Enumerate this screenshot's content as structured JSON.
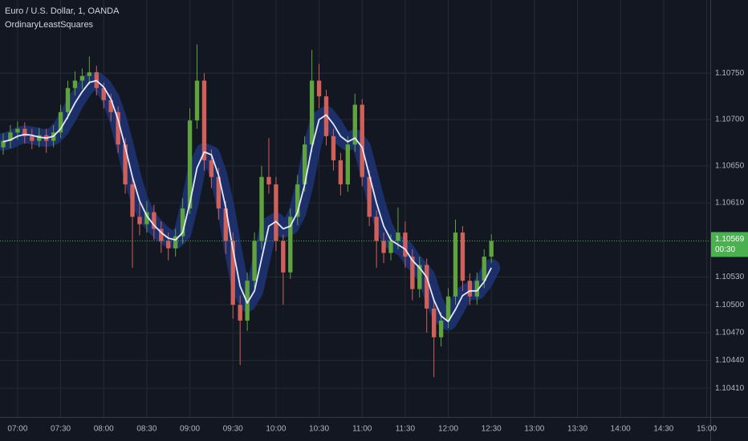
{
  "chart_data": {
    "type": "candlestick",
    "title": "Euro / U.S. Dollar, 1, OANDA",
    "x": [
      0,
      1,
      2,
      3,
      4,
      5,
      6,
      7,
      8,
      9,
      10,
      11,
      12,
      13,
      14,
      15,
      16,
      17,
      18,
      19,
      20,
      21,
      22,
      23,
      24,
      25,
      26,
      27,
      28,
      29,
      30,
      31,
      32,
      33,
      34,
      35,
      36,
      37,
      38,
      39,
      40,
      41,
      42,
      43,
      44,
      45,
      46,
      47,
      48,
      49,
      50,
      51,
      52,
      53,
      54,
      55,
      56,
      57,
      58,
      59,
      60,
      61,
      62,
      63,
      64,
      65,
      66,
      67,
      68
    ],
    "open": [
      1.1067,
      1.10677,
      1.10686,
      1.1069,
      1.10682,
      1.10677,
      1.10683,
      1.10677,
      1.10686,
      1.10708,
      1.10734,
      1.10742,
      1.10747,
      1.10751,
      1.10734,
      1.10721,
      1.10708,
      1.10673,
      1.1063,
      1.10595,
      1.10587,
      1.106,
      1.10582,
      1.10569,
      1.10561,
      1.10574,
      1.10604,
      1.10699,
      1.10742,
      1.10656,
      1.10638,
      1.10604,
      1.10569,
      1.105,
      1.10483,
      1.10526,
      1.10569,
      1.10638,
      1.1063,
      1.10569,
      1.10535,
      1.10595,
      1.1063,
      1.10673,
      1.10742,
      1.10725,
      1.10682,
      1.10656,
      1.1063,
      1.10673,
      1.10716,
      1.10638,
      1.10595,
      1.10569,
      1.10556,
      1.10569,
      1.10578,
      1.10552,
      1.10517,
      1.10543,
      1.10496,
      1.10465,
      1.10483,
      1.10509,
      1.10578,
      1.10526,
      1.10509,
      1.10526,
      1.10552
    ],
    "high": [
      1.10685,
      1.10694,
      1.10698,
      1.10697,
      1.1069,
      1.10691,
      1.1069,
      1.10694,
      1.10716,
      1.10742,
      1.10752,
      1.10755,
      1.10768,
      1.10758,
      1.1074,
      1.10728,
      1.10714,
      1.1068,
      1.10638,
      1.1061,
      1.10612,
      1.10608,
      1.1059,
      1.10578,
      1.10582,
      1.10615,
      1.10712,
      1.10781,
      1.1075,
      1.10668,
      1.10648,
      1.10612,
      1.10578,
      1.1051,
      1.10535,
      1.10578,
      1.1065,
      1.1068,
      1.10638,
      1.10576,
      1.10604,
      1.1064,
      1.10682,
      1.10775,
      1.1076,
      1.10732,
      1.1069,
      1.10664,
      1.10682,
      1.10728,
      1.10722,
      1.10645,
      1.10602,
      1.10578,
      1.10576,
      1.10605,
      1.1059,
      1.1056,
      1.10552,
      1.1055,
      1.10505,
      1.10492,
      1.10518,
      1.10592,
      1.10585,
      1.10534,
      1.10535,
      1.1056,
      1.10576
    ],
    "low": [
      1.10662,
      1.10669,
      1.10678,
      1.10674,
      1.10668,
      1.1067,
      1.10664,
      1.1067,
      1.1068,
      1.107,
      1.10726,
      1.10733,
      1.10738,
      1.10726,
      1.10712,
      1.10698,
      1.10664,
      1.1062,
      1.1054,
      1.10575,
      1.10578,
      1.1057,
      1.10556,
      1.10548,
      1.10552,
      1.10566,
      1.10598,
      1.1069,
      1.10645,
      1.10626,
      1.10592,
      1.10555,
      1.10485,
      1.10435,
      1.10472,
      1.10518,
      1.1056,
      1.1062,
      1.10558,
      1.105,
      1.10528,
      1.10586,
      1.10622,
      1.10665,
      1.10712,
      1.10672,
      1.10645,
      1.10618,
      1.10622,
      1.10665,
      1.10628,
      1.10585,
      1.1054,
      1.10545,
      1.10548,
      1.1056,
      1.1054,
      1.10505,
      1.10508,
      1.1047,
      1.10422,
      1.10455,
      1.10475,
      1.105,
      1.10515,
      1.105,
      1.105,
      1.10518,
      1.10545
    ],
    "close": [
      1.10677,
      1.10686,
      1.1069,
      1.10682,
      1.10677,
      1.10683,
      1.10677,
      1.10686,
      1.10708,
      1.10734,
      1.10742,
      1.10747,
      1.10751,
      1.10734,
      1.10721,
      1.10708,
      1.10673,
      1.1063,
      1.10595,
      1.10587,
      1.106,
      1.10582,
      1.10569,
      1.10561,
      1.10574,
      1.10604,
      1.10699,
      1.10742,
      1.10656,
      1.10638,
      1.10604,
      1.10569,
      1.105,
      1.10483,
      1.10526,
      1.10569,
      1.10638,
      1.1063,
      1.10569,
      1.10535,
      1.10595,
      1.1063,
      1.10673,
      1.10742,
      1.10725,
      1.10682,
      1.10656,
      1.1063,
      1.10673,
      1.10716,
      1.10638,
      1.10595,
      1.10569,
      1.10556,
      1.10569,
      1.10578,
      1.10552,
      1.10517,
      1.10543,
      1.10496,
      1.10465,
      1.10483,
      1.10509,
      1.10578,
      1.10526,
      1.10509,
      1.10526,
      1.10552,
      1.10569
    ],
    "up_color": "#5fa33f",
    "down_color": "#d0605a",
    "series": [
      {
        "name": "OrdinaryLeastSquares",
        "color": "#e4e8ff",
        "values": [
          1.10676,
          1.10678,
          1.10682,
          1.10684,
          1.10683,
          1.10681,
          1.1068,
          1.10682,
          1.1069,
          1.10703,
          1.10718,
          1.1073,
          1.1074,
          1.10742,
          1.10735,
          1.10722,
          1.107,
          1.1067,
          1.10638,
          1.10612,
          1.10596,
          1.10586,
          1.10578,
          1.10572,
          1.1057,
          1.10578,
          1.1061,
          1.10648,
          1.10665,
          1.10662,
          1.1064,
          1.10605,
          1.1056,
          1.1052,
          1.10502,
          1.10515,
          1.1055,
          1.10585,
          1.1059,
          1.10582,
          1.10585,
          1.106,
          1.1063,
          1.1067,
          1.107,
          1.10705,
          1.10695,
          1.10682,
          1.10676,
          1.1068,
          1.1067,
          1.1064,
          1.1061,
          1.10585,
          1.1057,
          1.10565,
          1.1056,
          1.10548,
          1.1054,
          1.1053,
          1.10505,
          1.10488,
          1.10482,
          1.10495,
          1.1051,
          1.10515,
          1.10515,
          1.10525,
          1.1054
        ]
      }
    ],
    "band_color": "#1e3474",
    "xlim": [
      -0.45,
      98.5
    ],
    "xticks": [
      {
        "value": 2,
        "label": "07:00"
      },
      {
        "value": 8,
        "label": "07:30"
      },
      {
        "value": 14,
        "label": "08:00"
      },
      {
        "value": 20,
        "label": "08:30"
      },
      {
        "value": 26,
        "label": "09:00"
      },
      {
        "value": 32,
        "label": "09:30"
      },
      {
        "value": 38,
        "label": "10:00"
      },
      {
        "value": 44,
        "label": "10:30"
      },
      {
        "value": 50,
        "label": "11:00"
      },
      {
        "value": 56,
        "label": "11:30"
      },
      {
        "value": 62,
        "label": "12:00"
      },
      {
        "value": 68,
        "label": "12:30"
      },
      {
        "value": 74,
        "label": "13:00"
      },
      {
        "value": 80,
        "label": "13:30"
      },
      {
        "value": 86,
        "label": "14:00"
      },
      {
        "value": 92,
        "label": "14:30"
      },
      {
        "value": 98,
        "label": "15:00"
      }
    ],
    "ylim": [
      1.10379,
      1.10829
    ],
    "yticks": [
      {
        "value": 1.1075,
        "label": "1.10750"
      },
      {
        "value": 1.107,
        "label": "1.10700"
      },
      {
        "value": 1.1065,
        "label": "1.10650"
      },
      {
        "value": 1.1061,
        "label": "1.10610"
      },
      {
        "value": 1.1053,
        "label": "1.10530"
      },
      {
        "value": 1.105,
        "label": "1.10500"
      },
      {
        "value": 1.1047,
        "label": "1.10470"
      },
      {
        "value": 1.1044,
        "label": "1.10440"
      },
      {
        "value": 1.1041,
        "label": "1.10410"
      }
    ],
    "grid": true,
    "last_price": {
      "value": 1.10569,
      "label": "1.10569",
      "color": "#4caf50"
    },
    "countdown": "00:30"
  }
}
